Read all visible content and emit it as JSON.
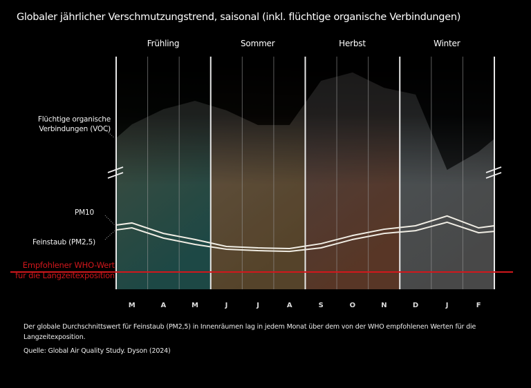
{
  "title": "Globaler jährlicher Verschmutzungstrend, saisonal (inkl. flüchtige organische Verbindungen)",
  "chart_data": {
    "type": "area",
    "title": "Globaler jährlicher Verschmutzungstrend, saisonal (inkl. flüchtige organische Verbindungen)",
    "xlabel": "",
    "ylabel": "",
    "y_unit_note": "Relative index (no y-axis scale shown; 0 = plot bottom, 100 = plot top); VOC axis is broken",
    "ylim": [
      0,
      100
    ],
    "grid": "vertical month lines",
    "seasons": [
      {
        "name": "Frühling",
        "months": [
          "M",
          "A",
          "M"
        ],
        "color_top": "#3d3f2a",
        "color_bottom": "#063a36"
      },
      {
        "name": "Sommer",
        "months": [
          "J",
          "J",
          "A"
        ],
        "color_top": "#5b4a39",
        "color_bottom": "#4a3415"
      },
      {
        "name": "Herbst",
        "months": [
          "S",
          "O",
          "N"
        ],
        "color_top": "#3b3333",
        "color_bottom": "#4d2410"
      },
      {
        "name": "Winter",
        "months": [
          "D",
          "J",
          "F"
        ],
        "color_top": "#3e4a4f",
        "color_bottom": "#3a3a3a"
      }
    ],
    "categories": [
      "M",
      "A",
      "M",
      "J",
      "J",
      "A",
      "S",
      "O",
      "N",
      "D",
      "J",
      "F"
    ],
    "series": [
      {
        "name": "Flüchtige organische Verbindungen (VOC)",
        "kind": "area",
        "color": "#8a8a8a",
        "start": 65.0,
        "end": 64.7,
        "values": [
          70.9,
          77.4,
          81.0,
          76.9,
          70.6,
          70.6,
          89.6,
          93.2,
          86.6,
          83.7,
          51.3,
          59.1
        ]
      },
      {
        "name": "PM10",
        "kind": "line",
        "color": "#f0ede4",
        "start": 27.6,
        "end": 27.3,
        "values": [
          28.5,
          24.0,
          21.4,
          18.4,
          17.8,
          17.5,
          19.6,
          23.1,
          25.8,
          27.3,
          31.5,
          26.4
        ]
      },
      {
        "name": "Feinstaub (PM2,5)",
        "kind": "line",
        "color": "#f0ede4",
        "start": 25.5,
        "end": 24.9,
        "values": [
          26.4,
          22.0,
          19.3,
          17.2,
          16.6,
          16.3,
          17.8,
          21.4,
          24.0,
          25.2,
          28.8,
          24.3
        ]
      }
    ],
    "reference_line": {
      "label": "Empfohlener WHO-Wert für die Langzeitexposition",
      "value": 7.4,
      "color": "#d2171c"
    },
    "legend": "left-inline labels",
    "annotations": [
      "Flüchtige organische Verbindungen (VOC)",
      "PM10",
      "Feinstaub (PM2,5)"
    ]
  },
  "labels": {
    "voc_line1": "Flüchtige organische",
    "voc_line2": "Verbindungen (VOC)",
    "pm10": "PM10",
    "pm25": "Feinstaub (PM2,5)",
    "who_line1": "Empfohlener WHO-Wert",
    "who_line2": "für die Langzeitexposition"
  },
  "note": "Der globale Durchschnittswert für Feinstaub (PM2,5) in Innenräumen lag in jedem Monat über dem von der WHO empfohlenen Werten für die Langzeitexposition.",
  "source": "Quelle:  Global Air Quality Study. Dyson (2024)"
}
